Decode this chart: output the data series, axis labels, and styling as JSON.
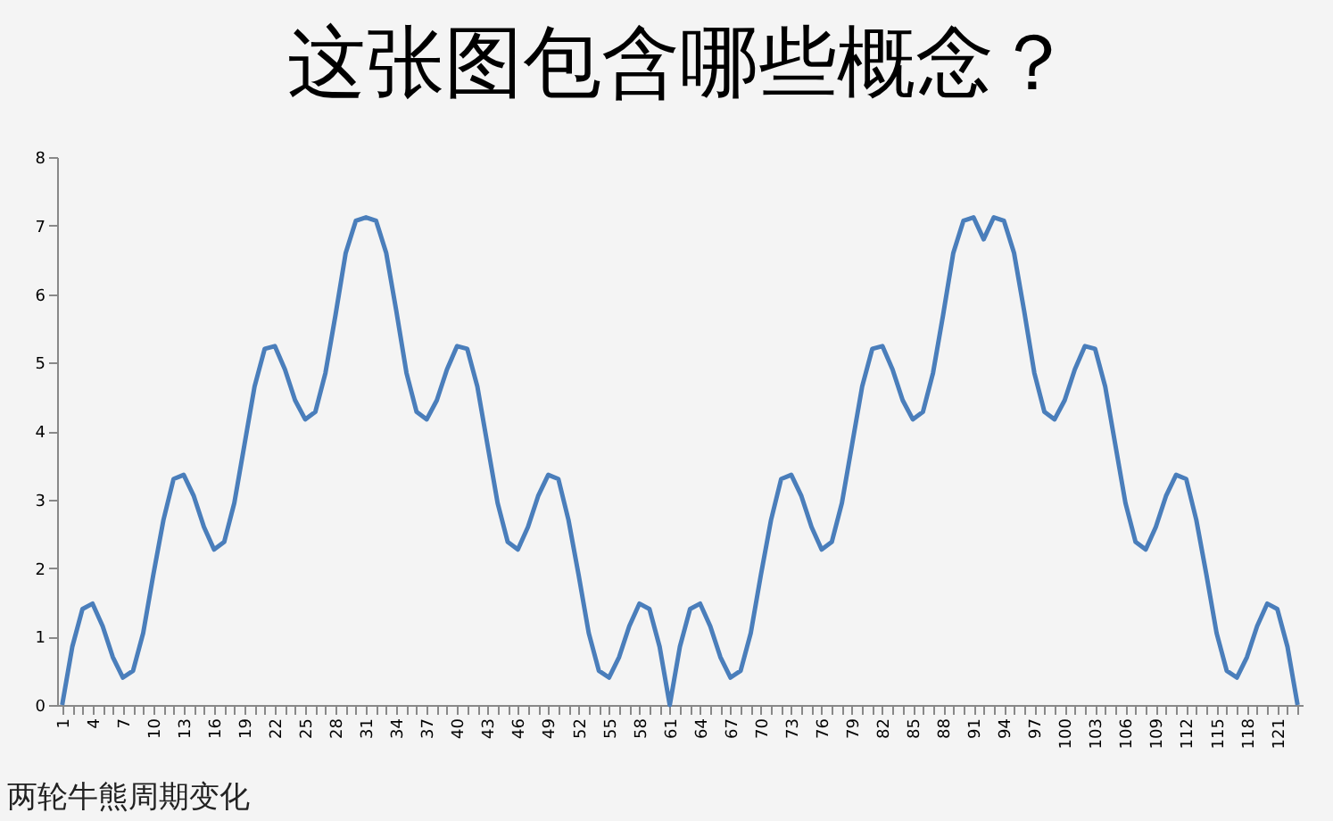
{
  "chart_data": {
    "type": "line",
    "title": "这张图包含哪些概念？",
    "categories": [
      "1",
      null,
      null,
      "4",
      null,
      null,
      "7",
      null,
      null,
      "10",
      null,
      null,
      "13",
      null,
      null,
      "16",
      null,
      null,
      "19",
      null,
      null,
      "22",
      null,
      null,
      "25",
      null,
      null,
      "28",
      null,
      null,
      "31",
      null,
      null,
      "34",
      null,
      null,
      "37",
      null,
      null,
      "40",
      null,
      null,
      "43",
      null,
      null,
      "46",
      null,
      null,
      "49",
      null,
      null,
      "52",
      null,
      null,
      "55",
      null,
      null,
      "58",
      null,
      null,
      "61",
      null,
      null,
      "64",
      null,
      null,
      "67",
      null,
      null,
      "70",
      null,
      null,
      "73",
      null,
      null,
      "76",
      null,
      null,
      "79",
      null,
      null,
      "82",
      null,
      null,
      "85",
      null,
      null,
      "88",
      null,
      null,
      "91",
      null,
      null,
      "94",
      null,
      null,
      "97",
      null,
      null,
      "100",
      null,
      null,
      "103",
      null,
      null,
      "106",
      null,
      null,
      "109",
      null,
      null,
      "112",
      null,
      null,
      "115",
      null,
      null,
      "118",
      null,
      null,
      "121",
      null,
      null
    ],
    "series": [
      {
        "color": "#4a7ebb",
        "values": [
          0,
          0.85,
          1.4,
          1.48,
          1.15,
          0.7,
          0.4,
          0.5,
          1.05,
          1.9,
          2.7,
          3.3,
          3.36,
          3.05,
          2.6,
          2.27,
          2.38,
          2.95,
          3.8,
          4.65,
          5.2,
          5.24,
          4.9,
          4.45,
          4.17,
          4.28,
          4.85,
          5.7,
          6.6,
          7.07,
          7.12,
          7.07,
          6.6,
          5.75,
          4.85,
          4.28,
          4.17,
          4.45,
          4.9,
          5.24,
          5.2,
          4.65,
          3.8,
          2.95,
          2.38,
          2.27,
          2.6,
          3.05,
          3.36,
          3.3,
          2.7,
          1.9,
          1.05,
          0.5,
          0.4,
          0.7,
          1.15,
          1.48,
          1.4,
          0.85,
          0,
          0.85,
          1.4,
          1.48,
          1.15,
          0.7,
          0.4,
          0.5,
          1.05,
          1.9,
          2.7,
          3.3,
          3.36,
          3.05,
          2.6,
          2.27,
          2.38,
          2.95,
          3.8,
          4.65,
          5.2,
          5.24,
          4.9,
          4.45,
          4.17,
          4.28,
          4.85,
          5.7,
          6.6,
          7.07,
          7.12,
          6.8,
          7.12,
          7.07,
          6.6,
          5.75,
          4.85,
          4.28,
          4.17,
          4.45,
          4.9,
          5.24,
          5.2,
          4.65,
          3.8,
          2.95,
          2.38,
          2.27,
          2.6,
          3.05,
          3.36,
          3.3,
          2.7,
          1.9,
          1.05,
          0.5,
          0.4,
          0.7,
          1.15,
          1.48,
          1.4,
          0.85,
          0
        ]
      }
    ],
    "ylim": [
      0,
      8
    ],
    "yticks": [
      0,
      1,
      2,
      3,
      4,
      5,
      6,
      7,
      8
    ],
    "grid": false,
    "marker": "none",
    "line_style": "solid",
    "annotations": [
      "两轮牛熊周期变化"
    ]
  }
}
